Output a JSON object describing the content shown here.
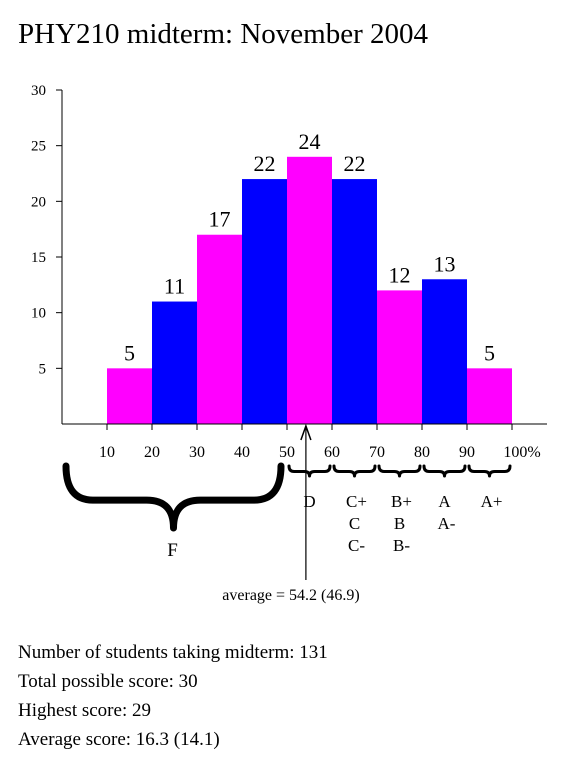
{
  "title": "PHY210 midterm: November 2004",
  "chart_data": {
    "type": "bar",
    "title": "PHY210 midterm: November 2004",
    "categories": [
      "0-10",
      "10-20",
      "20-30",
      "30-40",
      "40-50",
      "50-60",
      "60-70",
      "70-80",
      "80-90",
      "90-100"
    ],
    "values": [
      0,
      5,
      11,
      17,
      22,
      24,
      22,
      12,
      13,
      5
    ],
    "bar_colors": [
      "#ff00ff",
      "#ff00ff",
      "#0000ff",
      "#ff00ff",
      "#0000ff",
      "#ff00ff",
      "#0000ff",
      "#ff00ff",
      "#0000ff",
      "#ff00ff"
    ],
    "x_ticks": [
      "10",
      "20",
      "30",
      "40",
      "50",
      "60",
      "70",
      "80",
      "90",
      "100%"
    ],
    "y_ticks": [
      "5",
      "10",
      "15",
      "20",
      "25",
      "30"
    ],
    "ylim": [
      0,
      30
    ],
    "xlim": [
      0,
      100
    ],
    "grid": false,
    "grades": [
      {
        "range": [
          0,
          50
        ],
        "labels": [
          "F"
        ]
      },
      {
        "range": [
          50,
          60
        ],
        "labels": [
          "D"
        ]
      },
      {
        "range": [
          60,
          70
        ],
        "labels": [
          "C+",
          "C",
          "C-"
        ]
      },
      {
        "range": [
          70,
          80
        ],
        "labels": [
          "B+",
          "B",
          "B-"
        ]
      },
      {
        "range": [
          80,
          90
        ],
        "labels": [
          "A",
          "A-"
        ]
      },
      {
        "range": [
          90,
          100
        ],
        "labels": [
          "A+"
        ]
      }
    ],
    "average": {
      "x": 54.2,
      "label": "average = 54.2 (46.9)"
    }
  },
  "stats": {
    "students": "Number of students taking midterm: 131",
    "total": "Total possible score: 30",
    "highest": "Highest score: 29",
    "average": "Average score: 16.3 (14.1)"
  }
}
